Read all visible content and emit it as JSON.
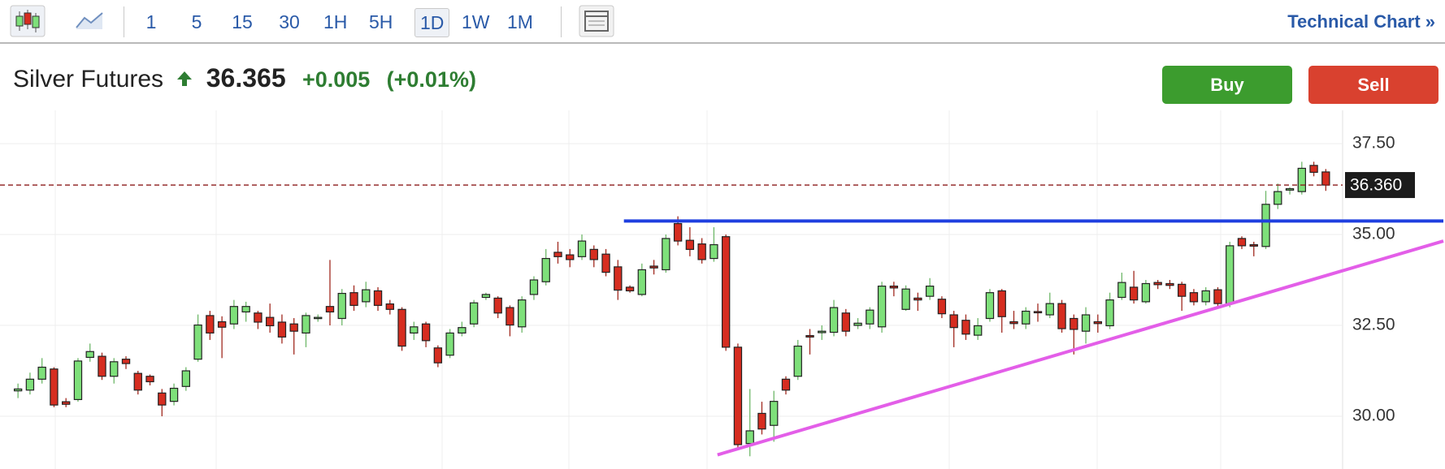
{
  "header": {
    "intervals": [
      "1",
      "5",
      "15",
      "30",
      "1H",
      "5H",
      "1D",
      "1W",
      "1M"
    ],
    "selected_interval": 6,
    "link": "Technical Chart »"
  },
  "quote": {
    "name": "Silver Futures",
    "price": "36.365",
    "change": "+0.005",
    "change_pct": "(+0.01%)"
  },
  "buttons": {
    "buy": "Buy",
    "sell": "Sell"
  },
  "chart_data": {
    "type": "candlestick",
    "up_color": "#7ee07a",
    "down_color": "#d62d20",
    "xlim": [
      -1.5,
      110.4
    ],
    "ylim": [
      28.55,
      38.2
    ],
    "yticks": [
      {
        "value": 30,
        "label": "30.00"
      },
      {
        "value": 32.5,
        "label": "32.50"
      },
      {
        "value": 35,
        "label": "35.00"
      },
      {
        "value": 37.5,
        "label": "37.50"
      }
    ],
    "grid": true,
    "last_price": {
      "value": 36.36,
      "label": "36.360",
      "color": "#8b1a1a"
    },
    "trendlines": [
      {
        "color": "#1f3fe0",
        "from": [
          50.5,
          35.37
        ],
        "to": [
          118.8,
          35.37
        ]
      },
      {
        "color": "#e35ee8",
        "from": [
          58.3,
          28.94
        ],
        "to": [
          118.8,
          34.82
        ]
      }
    ],
    "open": [
      30.7,
      30.72,
      31.02,
      31.3,
      30.4,
      30.46,
      31.62,
      31.65,
      31.1,
      31.57,
      31.18,
      31.1,
      30.64,
      30.41,
      30.82,
      31.57,
      32.77,
      32.6,
      32.54,
      32.87,
      32.84,
      32.72,
      32.59,
      32.54,
      32.29,
      32.69,
      33.02,
      32.69,
      33.4,
      33.15,
      33.45,
      33.09,
      32.94,
      32.29,
      32.54,
      31.88,
      31.68,
      32.29,
      32.54,
      33.27,
      33.25,
      32.99,
      32.46,
      33.35,
      33.7,
      34.51,
      34.44,
      34.39,
      34.59,
      34.46,
      34.11,
      33.55,
      33.35,
      34.13,
      34.03,
      35.3,
      34.84,
      34.74,
      34.34,
      34.94,
      31.9,
      29.25,
      30.08,
      29.75,
      31.02,
      31.1,
      32.22,
      32.3,
      32.31,
      32.84,
      32.5,
      32.54,
      32.46,
      33.58,
      32.94,
      33.25,
      33.3,
      33.22,
      32.79,
      32.64,
      32.23,
      32.69,
      33.45,
      32.6,
      32.54,
      32.88,
      32.79,
      33.1,
      32.69,
      32.34,
      32.6,
      32.49,
      33.27,
      33.55,
      33.15,
      33.68,
      33.65,
      33.63,
      33.4,
      33.15,
      33.48,
      33.1,
      34.89,
      34.72,
      34.67,
      35.83,
      36.22,
      36.18,
      36.9,
      36.72
    ],
    "high": [
      30.9,
      31.2,
      31.6,
      31.35,
      30.5,
      31.6,
      32.0,
      31.75,
      31.6,
      31.65,
      31.25,
      31.15,
      30.75,
      30.9,
      31.35,
      32.8,
      32.9,
      32.75,
      33.2,
      33.15,
      32.9,
      33.1,
      32.8,
      32.7,
      32.85,
      32.8,
      34.3,
      33.5,
      33.6,
      33.7,
      33.55,
      33.2,
      33.0,
      32.6,
      32.6,
      31.95,
      32.4,
      32.6,
      33.2,
      33.4,
      33.3,
      33.05,
      33.3,
      33.85,
      34.6,
      34.8,
      34.6,
      35.0,
      34.7,
      34.6,
      34.3,
      33.6,
      34.2,
      34.3,
      35.0,
      35.5,
      35.2,
      34.9,
      35.2,
      35.0,
      32.0,
      30.75,
      30.4,
      30.7,
      31.1,
      32.1,
      32.4,
      32.5,
      33.2,
      32.95,
      32.7,
      33.0,
      33.7,
      33.7,
      33.6,
      33.4,
      33.8,
      33.3,
      32.9,
      32.8,
      32.7,
      33.5,
      33.5,
      32.9,
      33.0,
      33.1,
      33.4,
      33.2,
      32.8,
      33.0,
      32.8,
      33.4,
      33.95,
      34.0,
      33.75,
      33.75,
      33.75,
      33.7,
      33.5,
      33.55,
      33.55,
      34.8,
      34.95,
      34.8,
      36.2,
      36.4,
      36.3,
      37.0,
      37.0,
      36.8
    ],
    "low": [
      30.5,
      30.6,
      30.9,
      30.25,
      30.25,
      30.4,
      31.5,
      31.0,
      30.9,
      31.3,
      30.6,
      30.85,
      30.0,
      30.3,
      30.7,
      31.5,
      32.1,
      31.6,
      32.4,
      32.6,
      32.4,
      32.3,
      32.0,
      31.7,
      31.9,
      32.6,
      32.5,
      32.5,
      32.9,
      33.0,
      32.9,
      32.8,
      31.8,
      32.1,
      31.9,
      31.35,
      31.6,
      32.2,
      32.45,
      33.2,
      32.7,
      32.2,
      32.3,
      33.2,
      33.6,
      34.2,
      34.1,
      34.3,
      34.1,
      33.85,
      33.2,
      33.4,
      33.3,
      33.9,
      33.95,
      34.7,
      34.4,
      34.2,
      34.25,
      31.8,
      29.1,
      28.9,
      29.5,
      29.3,
      30.6,
      31.0,
      31.7,
      32.1,
      32.2,
      32.2,
      32.4,
      32.4,
      32.3,
      33.3,
      32.9,
      32.9,
      33.2,
      32.7,
      31.9,
      32.1,
      32.1,
      32.6,
      32.3,
      32.4,
      32.4,
      32.6,
      32.7,
      32.3,
      31.7,
      32.0,
      32.3,
      32.4,
      33.2,
      33.1,
      33.1,
      33.5,
      33.5,
      32.9,
      33.05,
      33.05,
      33.0,
      33.0,
      34.6,
      34.4,
      34.6,
      35.7,
      36.1,
      36.1,
      36.6,
      36.2
    ],
    "close": [
      30.75,
      31.02,
      31.35,
      30.31,
      30.33,
      31.52,
      31.78,
      31.1,
      31.5,
      31.45,
      30.72,
      30.95,
      30.31,
      30.77,
      31.25,
      32.51,
      32.29,
      32.45,
      33.02,
      33.02,
      32.59,
      32.49,
      32.18,
      32.34,
      32.77,
      32.72,
      32.87,
      33.38,
      33.05,
      33.48,
      33.05,
      32.94,
      31.93,
      32.46,
      32.08,
      31.47,
      32.29,
      32.44,
      33.12,
      33.35,
      32.84,
      32.51,
      33.2,
      33.75,
      34.34,
      34.39,
      34.31,
      34.82,
      34.31,
      33.96,
      33.47,
      33.45,
      34.03,
      34.08,
      34.89,
      34.82,
      34.59,
      34.31,
      34.72,
      31.9,
      29.22,
      29.6,
      29.65,
      30.41,
      30.72,
      31.93,
      32.18,
      32.34,
      32.99,
      32.34,
      32.56,
      32.92,
      33.58,
      33.53,
      33.5,
      33.2,
      33.58,
      32.82,
      32.44,
      32.26,
      32.49,
      33.4,
      32.74,
      32.55,
      32.89,
      32.85,
      33.1,
      32.41,
      32.39,
      32.79,
      32.55,
      33.2,
      33.68,
      33.2,
      33.65,
      33.62,
      33.6,
      33.3,
      33.15,
      33.45,
      33.1,
      34.69,
      34.69,
      34.68,
      35.83,
      36.18,
      36.26,
      36.82,
      36.71,
      36.36
    ]
  }
}
